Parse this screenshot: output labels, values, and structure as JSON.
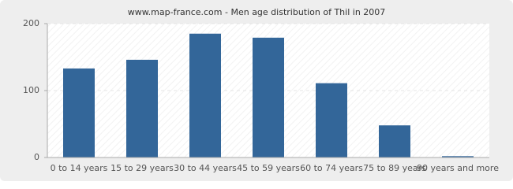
{
  "chart_data": {
    "type": "bar",
    "title": "www.map-france.com - Men age distribution of Thil in 2007",
    "categories": [
      "0 to 14 years",
      "15 to 29 years",
      "30 to 44 years",
      "45 to 59 years",
      "60 to 74 years",
      "75 to 89 years",
      "90 years and more"
    ],
    "values": [
      133,
      146,
      185,
      179,
      111,
      48,
      2
    ],
    "color": "#336699",
    "ylim": [
      0,
      200
    ],
    "yticks": [
      0,
      100,
      200
    ],
    "grid": true
  }
}
